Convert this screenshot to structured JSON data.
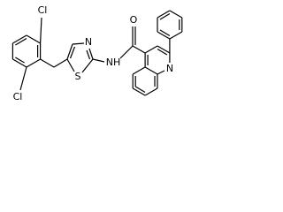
{
  "labels": [
    "Cl",
    "Cl",
    "S",
    "N",
    "NH",
    "O",
    "N"
  ]
}
